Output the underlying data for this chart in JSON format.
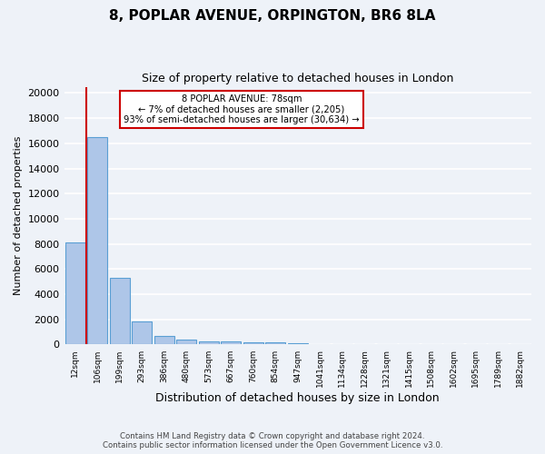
{
  "title1": "8, POPLAR AVENUE, ORPINGTON, BR6 8LA",
  "title2": "Size of property relative to detached houses in London",
  "xlabel": "Distribution of detached houses by size in London",
  "ylabel": "Number of detached properties",
  "bar_labels": [
    "12sqm",
    "106sqm",
    "199sqm",
    "293sqm",
    "386sqm",
    "480sqm",
    "573sqm",
    "667sqm",
    "760sqm",
    "854sqm",
    "947sqm",
    "1041sqm",
    "1134sqm",
    "1228sqm",
    "1321sqm",
    "1415sqm",
    "1508sqm",
    "1602sqm",
    "1695sqm",
    "1789sqm",
    "1882sqm"
  ],
  "bar_values": [
    8100,
    16500,
    5300,
    1850,
    700,
    380,
    280,
    220,
    190,
    170,
    80,
    50,
    30,
    20,
    15,
    10,
    8,
    6,
    5,
    4,
    3
  ],
  "bar_color": "#aec6e8",
  "bar_edge_color": "#5a9fd4",
  "annotation_title": "8 POPLAR AVENUE: 78sqm",
  "annotation_line1": "← 7% of detached houses are smaller (2,205)",
  "annotation_line2": "93% of semi-detached houses are larger (30,634) →",
  "annotation_box_color": "#ffffff",
  "annotation_box_edge": "#cc0000",
  "vline_color": "#cc0000",
  "ylim": [
    0,
    20500
  ],
  "yticks": [
    0,
    2000,
    4000,
    6000,
    8000,
    10000,
    12000,
    14000,
    16000,
    18000,
    20000
  ],
  "footer1": "Contains HM Land Registry data © Crown copyright and database right 2024.",
  "footer2": "Contains public sector information licensed under the Open Government Licence v3.0.",
  "bg_color": "#eef2f8",
  "grid_color": "#ffffff"
}
